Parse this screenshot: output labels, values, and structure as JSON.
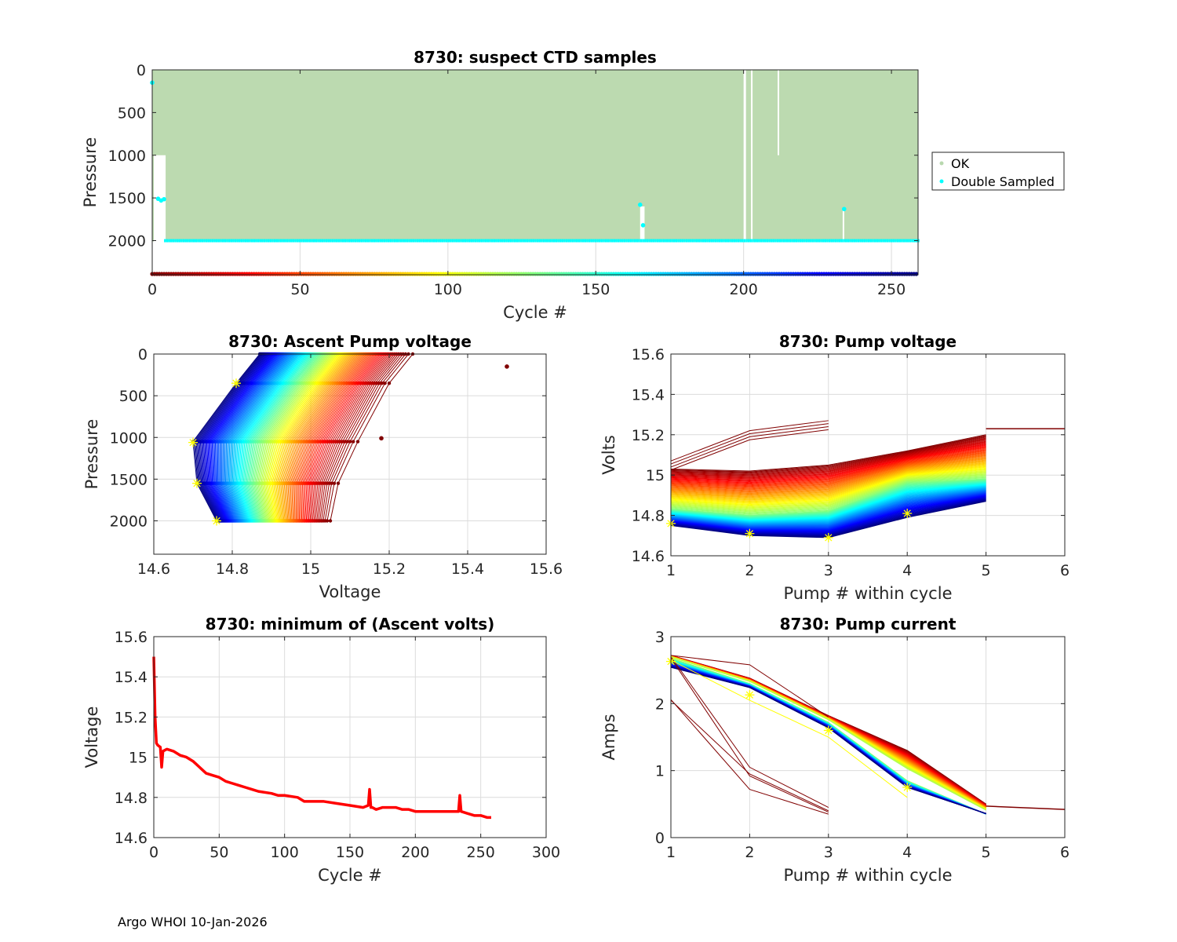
{
  "footer": "Argo WHOI 10-Jan-2026",
  "chart_data": [
    {
      "id": "suspect-ctd",
      "type": "scatter",
      "title": "8730: suspect CTD samples",
      "xlabel": "Cycle #",
      "ylabel": "Pressure",
      "xlim": [
        0,
        259
      ],
      "ylim": [
        0,
        2400
      ],
      "y_reversed": true,
      "xticks": [
        0,
        50,
        100,
        150,
        200,
        250
      ],
      "yticks": [
        0,
        500,
        1000,
        1500,
        2000
      ],
      "grid": true,
      "legend": {
        "position": "right",
        "entries": [
          {
            "label": "OK",
            "color": "#b8d8ae"
          },
          {
            "label": "Double Sampled",
            "color": "#00ffff"
          }
        ]
      },
      "ok_color": "#bcdab0",
      "double_sampled_color": "#00ffff",
      "ok_profile_max_pressure": 2010,
      "gaps": [
        {
          "cycle_start": 0,
          "cycle_end": 4,
          "from_pressure": 1000,
          "to_pressure": 2400
        },
        {
          "cycle_start": 165,
          "cycle_end": 166.5,
          "from_pressure": 1600,
          "to_pressure": 2010
        },
        {
          "cycle_start": 200,
          "cycle_end": 200.8,
          "from_pressure": 0,
          "to_pressure": 2010
        },
        {
          "cycle_start": 202.5,
          "cycle_end": 203,
          "from_pressure": 0,
          "to_pressure": 2010
        },
        {
          "cycle_start": 211.5,
          "cycle_end": 212,
          "from_pressure": 0,
          "to_pressure": 1000
        },
        {
          "cycle_start": 233.5,
          "cycle_end": 234,
          "from_pressure": 1650,
          "to_pressure": 2010
        }
      ],
      "double_sampled_points": [
        {
          "cycle": 0,
          "pressure": 150
        },
        {
          "cycle": 2,
          "pressure": 1510
        },
        {
          "cycle": 3,
          "pressure": 1530
        },
        {
          "cycle": 4,
          "pressure": 1515
        },
        {
          "cycle": 165,
          "pressure": 1580
        },
        {
          "cycle": 166,
          "pressure": 1820
        },
        {
          "cycle": 234,
          "pressure": 1630
        }
      ],
      "bottom_band_pressure": 2010,
      "cycle_color_strip_pressure": 2400,
      "colormap": "jet-reversed (cycle 0 dark red → cycle 259 dark blue)"
    },
    {
      "id": "ascent-pump-voltage",
      "type": "line",
      "title": "8730: Ascent Pump voltage",
      "xlabel": "Voltage",
      "ylabel": "Pressure",
      "xlim": [
        14.6,
        15.6
      ],
      "ylim": [
        0,
        2400
      ],
      "y_reversed": true,
      "xticks": [
        "14.6",
        "14.8",
        "15",
        "15.2",
        "15.4",
        "15.6"
      ],
      "yticks": [
        0,
        500,
        1000,
        1500,
        2000
      ],
      "grid": true,
      "pressures": [
        0,
        350,
        1050,
        1550,
        2000
      ],
      "series_envelope": {
        "first_cycle_voltages": [
          15.26,
          15.2,
          15.12,
          15.07,
          15.05
        ],
        "last_cycle_voltages": [
          14.87,
          14.81,
          14.7,
          14.71,
          14.76
        ]
      },
      "highlight_points": [
        {
          "voltage": 14.81,
          "pressure": 350
        },
        {
          "voltage": 14.7,
          "pressure": 1060
        },
        {
          "voltage": 14.71,
          "pressure": 1550
        },
        {
          "voltage": 14.76,
          "pressure": 2000
        }
      ],
      "outliers": [
        {
          "voltage": 15.5,
          "pressure": 150
        },
        {
          "voltage": 15.18,
          "pressure": 1010
        }
      ],
      "highlight_color": "#ffff00"
    },
    {
      "id": "pump-voltage",
      "type": "line",
      "title": "8730: Pump voltage",
      "xlabel": "Pump # within cycle",
      "ylabel": "Volts",
      "xlim": [
        1,
        6
      ],
      "ylim": [
        14.6,
        15.6
      ],
      "xticks": [
        1,
        2,
        3,
        4,
        5,
        6
      ],
      "yticks": [
        "14.6",
        "14.8",
        "15",
        "15.2",
        "15.4",
        "15.6"
      ],
      "grid": true,
      "series_envelope": {
        "first_cycles": [
          15.07,
          15.22,
          15.27
        ],
        "early_red": [
          15.03,
          15.02,
          15.05,
          15.12,
          15.2
        ],
        "mid_green": [
          14.83,
          14.8,
          14.82,
          14.96,
          14.98
        ],
        "last_blue": [
          14.75,
          14.7,
          14.69,
          14.79,
          14.87
        ],
        "extended_dark_red": [
          15.23,
          15.23
        ]
      },
      "highlight_points": [
        {
          "pump": 1,
          "volts": 14.76
        },
        {
          "pump": 2,
          "volts": 14.71
        },
        {
          "pump": 3,
          "volts": 14.69
        },
        {
          "pump": 4,
          "volts": 14.81
        }
      ],
      "highlight_color": "#ffff00"
    },
    {
      "id": "min-ascent-volts",
      "type": "line",
      "title": "8730: minimum of (Ascent volts)",
      "xlabel": "Cycle #",
      "ylabel": "Voltage",
      "xlim": [
        0,
        300
      ],
      "ylim": [
        14.6,
        15.6
      ],
      "xticks": [
        0,
        50,
        100,
        150,
        200,
        250,
        300
      ],
      "yticks": [
        "14.6",
        "14.8",
        "15",
        "15.2",
        "15.4",
        "15.6"
      ],
      "grid": true,
      "color": "#ff0000",
      "x": [
        0,
        1,
        2,
        3,
        5,
        6,
        7,
        10,
        15,
        20,
        25,
        30,
        35,
        40,
        45,
        50,
        55,
        60,
        65,
        70,
        75,
        80,
        90,
        95,
        100,
        110,
        115,
        120,
        130,
        140,
        150,
        160,
        164,
        165,
        166,
        167,
        170,
        175,
        180,
        185,
        190,
        195,
        200,
        210,
        220,
        230,
        233,
        234,
        235,
        240,
        245,
        250,
        255,
        258
      ],
      "y": [
        15.5,
        15.2,
        15.07,
        15.06,
        15.05,
        14.95,
        15.03,
        15.04,
        15.03,
        15.01,
        15.0,
        14.98,
        14.95,
        14.92,
        14.91,
        14.9,
        14.88,
        14.87,
        14.86,
        14.85,
        14.84,
        14.83,
        14.82,
        14.81,
        14.81,
        14.8,
        14.78,
        14.78,
        14.78,
        14.77,
        14.76,
        14.75,
        14.76,
        14.84,
        14.75,
        14.75,
        14.74,
        14.75,
        14.75,
        14.75,
        14.74,
        14.74,
        14.73,
        14.73,
        14.73,
        14.73,
        14.73,
        14.81,
        14.73,
        14.72,
        14.71,
        14.71,
        14.7,
        14.7
      ]
    },
    {
      "id": "pump-current",
      "type": "line",
      "title": "8730: Pump current",
      "xlabel": "Pump # within cycle",
      "ylabel": "Amps",
      "xlim": [
        1,
        6
      ],
      "ylim": [
        0,
        3
      ],
      "xticks": [
        1,
        2,
        3,
        4,
        5,
        6
      ],
      "yticks": [
        0,
        1,
        2,
        3
      ],
      "grid": true,
      "series_envelope": {
        "first_cycles": [
          2.06,
          0.72,
          0.35
        ],
        "first_cycles_b": [
          2.7,
          1.05,
          0.45
        ],
        "red": [
          2.72,
          2.38,
          1.82,
          1.3,
          0.5
        ],
        "blue": [
          2.68,
          2.3,
          1.72,
          0.85,
          0.35
        ],
        "cyan": [
          2.22,
          2.1,
          1.45,
          0.52,
          0.38
        ],
        "extended_dark_red": [
          0.47,
          0.42
        ]
      },
      "highlight_points": [
        {
          "pump": 1,
          "amps": 2.63
        },
        {
          "pump": 2,
          "amps": 2.13
        },
        {
          "pump": 3,
          "amps": 1.6
        },
        {
          "pump": 4,
          "amps": 0.75
        }
      ],
      "highlight_color": "#ffff00"
    }
  ]
}
